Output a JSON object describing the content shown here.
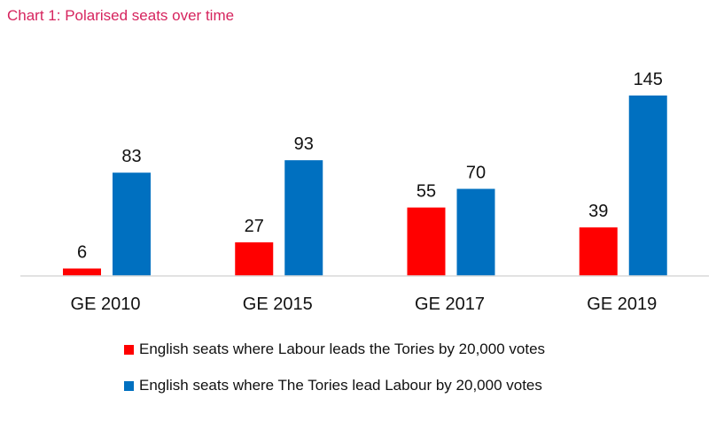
{
  "title": "Chart 1: Polarised seats over time",
  "colors": {
    "title": "#d6245e",
    "labour": "#ff0000",
    "tories": "#0070c0",
    "axis": "#d9d9d9",
    "text": "#111111"
  },
  "chart_data": {
    "type": "bar",
    "title": "Chart 1: Polarised seats over time",
    "categories": [
      "GE 2010",
      "GE 2015",
      "GE 2017",
      "GE 2019"
    ],
    "series": [
      {
        "name": "English seats where Labour leads the Tories by 20,000 votes",
        "color": "#ff0000",
        "values": [
          6,
          27,
          55,
          39
        ]
      },
      {
        "name": "English seats where The Tories lead Labour by 20,000 votes",
        "color": "#0070c0",
        "values": [
          83,
          93,
          70,
          145
        ]
      }
    ],
    "ylim": [
      0,
      145
    ],
    "grid": false,
    "data_labels": true,
    "legend_position": "bottom"
  }
}
